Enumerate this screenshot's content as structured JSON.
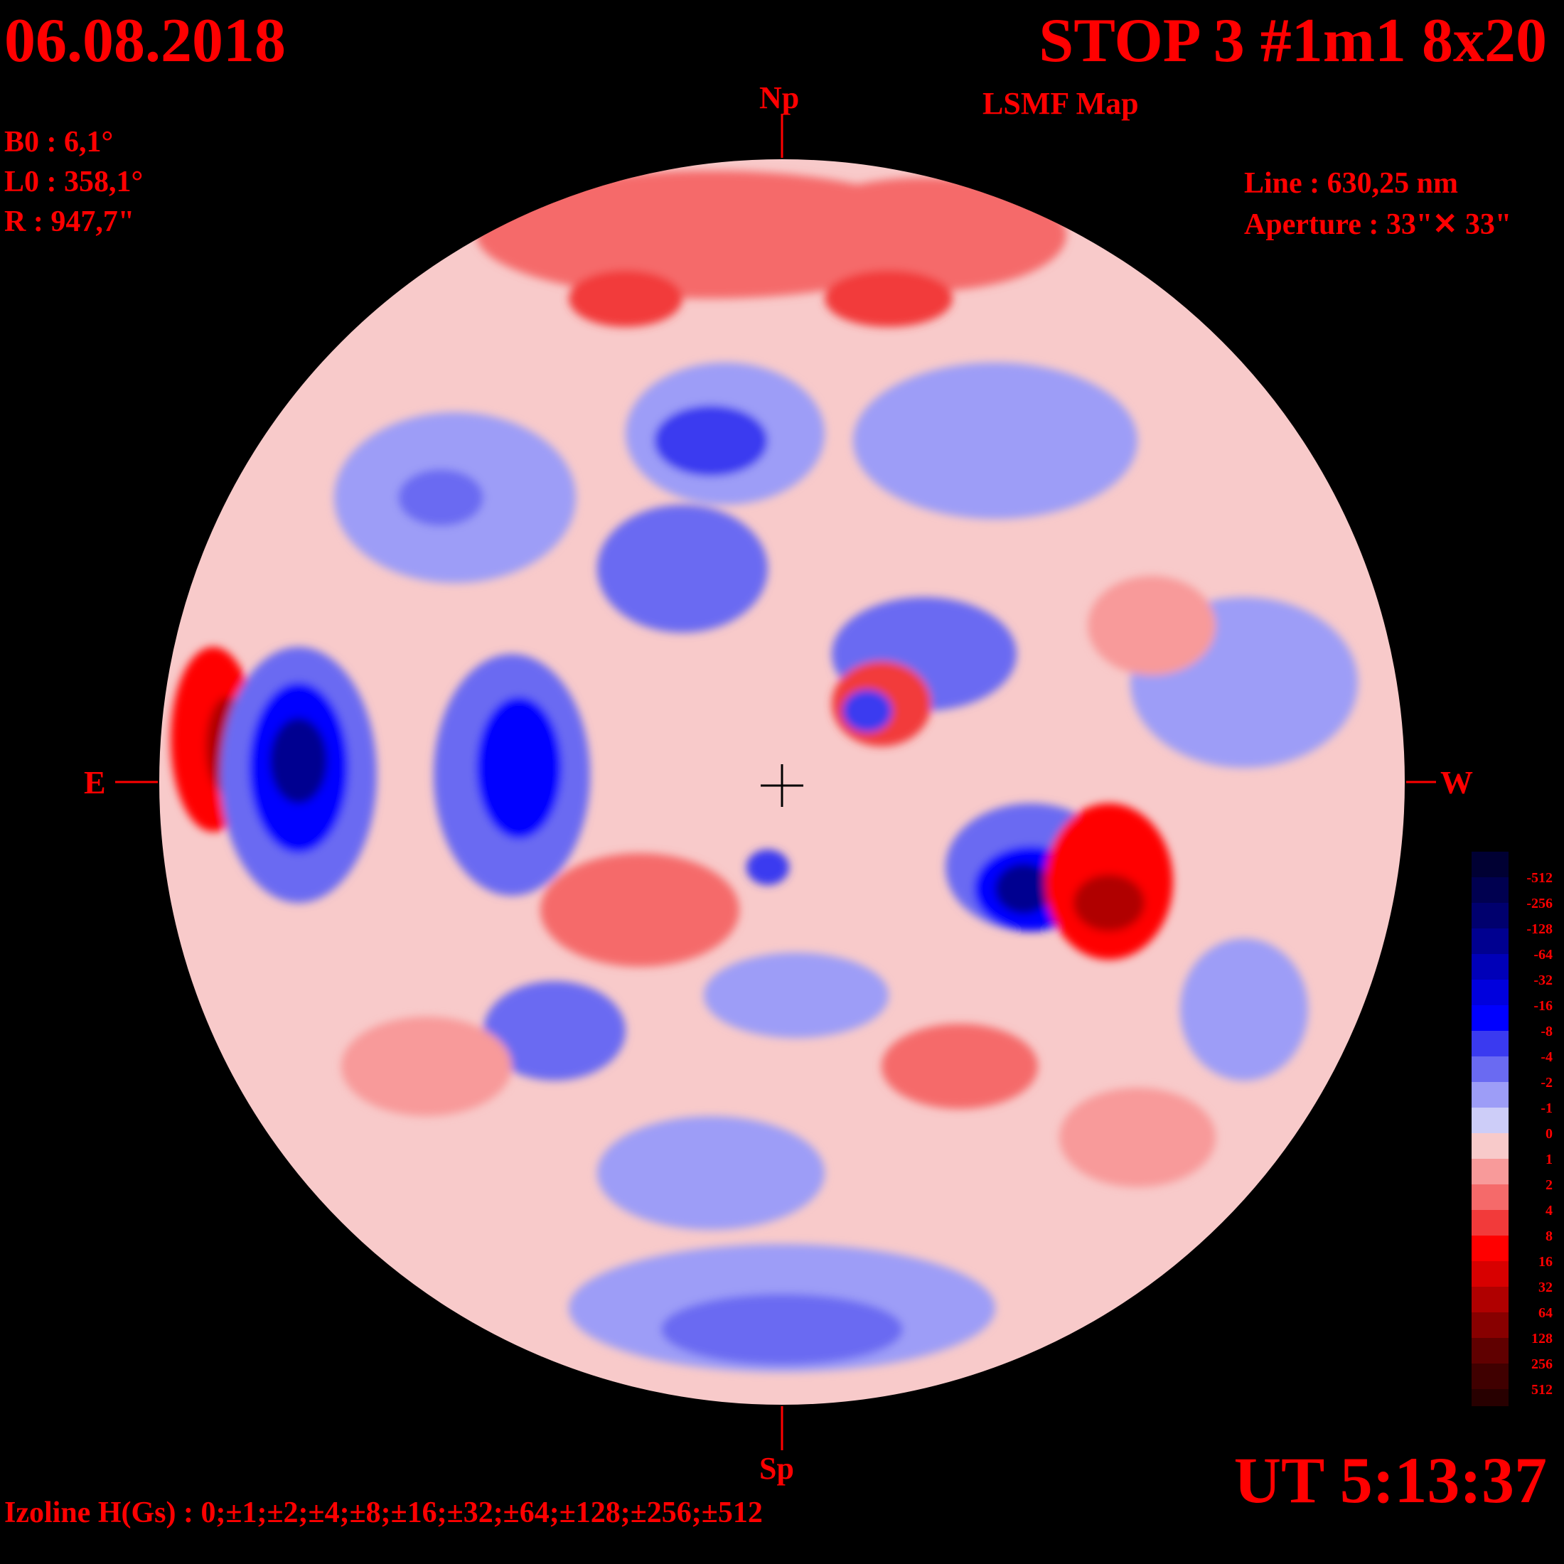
{
  "header": {
    "date": "06.08.2018",
    "title": "STOP 3 #1m1 8x20",
    "subtitle": "LSMF  Map"
  },
  "params": {
    "b0": "B0 : 6,1°",
    "l0": "L0 : 358,1°",
    "r": "R  : 947,7\"",
    "line": "Line :  630,25 nm",
    "aperture": "Aperture : 33\"✕ 33\""
  },
  "orientation": {
    "north": "Np",
    "south": "Sp",
    "east": "E",
    "west": "W"
  },
  "time": "UT 5:13:37",
  "izoline": "Izoline H(Gs) : 0;±1;±2;±4;±8;±16;±32;±64;±128;±256;±512",
  "colorbar": {
    "levels": [
      {
        "label": "-512",
        "color": "#000033"
      },
      {
        "label": "-256",
        "color": "#000050"
      },
      {
        "label": "-128",
        "color": "#00006e"
      },
      {
        "label": "-64",
        "color": "#000090"
      },
      {
        "label": "-32",
        "color": "#0000b8"
      },
      {
        "label": "-16",
        "color": "#0000dd"
      },
      {
        "label": "-8",
        "color": "#0000ff"
      },
      {
        "label": "-4",
        "color": "#3a3af0"
      },
      {
        "label": "-2",
        "color": "#6a6af2"
      },
      {
        "label": "-1",
        "color": "#9d9df7"
      },
      {
        "label": "0",
        "color": "#cdcdf8"
      },
      {
        "label": "1",
        "color": "#f8caca"
      },
      {
        "label": "2",
        "color": "#f89a9a"
      },
      {
        "label": "4",
        "color": "#f56a6a"
      },
      {
        "label": "8",
        "color": "#f23a3a"
      },
      {
        "label": "16",
        "color": "#ff0000"
      },
      {
        "label": "32",
        "color": "#d80000"
      },
      {
        "label": "64",
        "color": "#b00000"
      },
      {
        "label": "128",
        "color": "#880000"
      },
      {
        "label": "256",
        "color": "#600000"
      },
      {
        "label": "512",
        "color": "#400000"
      }
    ],
    "bottom_color": "#280000"
  }
}
